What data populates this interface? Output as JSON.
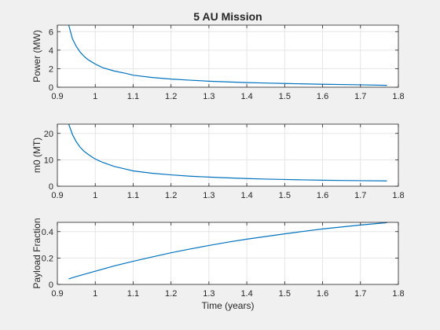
{
  "figure": {
    "title": "5 AU Mission",
    "background": "#f0f0f0",
    "axes_background": "#ffffff",
    "line_color": "#0072bd",
    "grid_color": "#e5e5e5",
    "axis_color": "#262626"
  },
  "chart_data": [
    {
      "type": "line",
      "title": "5 AU Mission",
      "xlabel": "",
      "ylabel": "Power (MW)",
      "xlim": [
        0.9,
        1.8
      ],
      "ylim": [
        0,
        6.7
      ],
      "xticks": [
        0.9,
        1.0,
        1.1,
        1.2,
        1.3,
        1.4,
        1.5,
        1.6,
        1.7,
        1.8
      ],
      "xtick_labels": [
        "0.9",
        "1",
        "1.1",
        "1.2",
        "1.3",
        "1.4",
        "1.5",
        "1.6",
        "1.7",
        "1.8"
      ],
      "yticks": [
        0,
        2,
        4,
        6
      ],
      "ytick_labels": [
        "0",
        "2",
        "4",
        "6"
      ],
      "grid": true,
      "series": [
        {
          "x": [
            0.93,
            0.94,
            0.95,
            0.96,
            0.97,
            0.98,
            0.99,
            1.0,
            1.02,
            1.05,
            1.08,
            1.1,
            1.15,
            1.2,
            1.25,
            1.3,
            1.35,
            1.4,
            1.45,
            1.5,
            1.55,
            1.6,
            1.65,
            1.7,
            1.77
          ],
          "y": [
            6.7,
            5.2,
            4.4,
            3.8,
            3.35,
            3.0,
            2.75,
            2.5,
            2.1,
            1.75,
            1.5,
            1.3,
            1.05,
            0.88,
            0.76,
            0.65,
            0.57,
            0.5,
            0.45,
            0.4,
            0.36,
            0.32,
            0.29,
            0.26,
            0.2
          ]
        }
      ]
    },
    {
      "type": "line",
      "xlabel": "",
      "ylabel": "m0 (MT)",
      "xlim": [
        0.9,
        1.8
      ],
      "ylim": [
        0,
        23.5
      ],
      "xticks": [
        0.9,
        1.0,
        1.1,
        1.2,
        1.3,
        1.4,
        1.5,
        1.6,
        1.7,
        1.8
      ],
      "xtick_labels": [
        "0.9",
        "1",
        "1.1",
        "1.2",
        "1.3",
        "1.4",
        "1.5",
        "1.6",
        "1.7",
        "1.8"
      ],
      "yticks": [
        0,
        10,
        20
      ],
      "ytick_labels": [
        "0",
        "10",
        "20"
      ],
      "grid": true,
      "series": [
        {
          "x": [
            0.93,
            0.94,
            0.95,
            0.96,
            0.97,
            0.98,
            0.99,
            1.0,
            1.02,
            1.05,
            1.08,
            1.1,
            1.15,
            1.2,
            1.25,
            1.3,
            1.35,
            1.4,
            1.45,
            1.5,
            1.55,
            1.6,
            1.65,
            1.7,
            1.77
          ],
          "y": [
            23.5,
            19.5,
            16.8,
            14.8,
            13.3,
            12.2,
            11.2,
            10.3,
            9.0,
            7.5,
            6.5,
            5.8,
            4.9,
            4.3,
            3.8,
            3.45,
            3.15,
            2.9,
            2.7,
            2.55,
            2.4,
            2.28,
            2.18,
            2.1,
            2.0
          ]
        }
      ]
    },
    {
      "type": "line",
      "xlabel": "Time (years)",
      "ylabel": "Payload Fraction",
      "xlim": [
        0.9,
        1.8
      ],
      "ylim": [
        0,
        0.47
      ],
      "xticks": [
        0.9,
        1.0,
        1.1,
        1.2,
        1.3,
        1.4,
        1.5,
        1.6,
        1.7,
        1.8
      ],
      "xtick_labels": [
        "0.9",
        "1",
        "1.1",
        "1.2",
        "1.3",
        "1.4",
        "1.5",
        "1.6",
        "1.7",
        "1.8"
      ],
      "yticks": [
        0,
        0.2,
        0.4
      ],
      "ytick_labels": [
        "0",
        "0.2",
        "0.4"
      ],
      "grid": true,
      "series": [
        {
          "x": [
            0.93,
            0.95,
            1.0,
            1.05,
            1.1,
            1.15,
            1.2,
            1.25,
            1.3,
            1.35,
            1.4,
            1.45,
            1.5,
            1.55,
            1.6,
            1.65,
            1.7,
            1.77
          ],
          "y": [
            0.042,
            0.06,
            0.1,
            0.14,
            0.175,
            0.208,
            0.24,
            0.268,
            0.295,
            0.32,
            0.343,
            0.363,
            0.383,
            0.402,
            0.42,
            0.435,
            0.45,
            0.468
          ]
        }
      ]
    }
  ]
}
